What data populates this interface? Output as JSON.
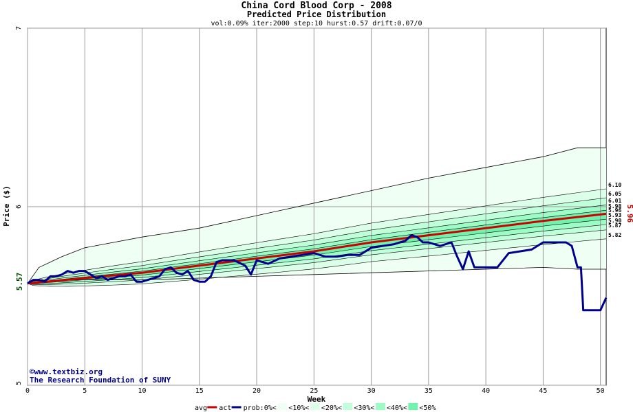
{
  "chart_data": {
    "type": "line",
    "title": "China Cord Blood Corp - 2008",
    "subtitle": "Predicted Price Distribution",
    "params": "vol:0.09% iter:2000 step:10 hurst:0.57 drift:0.07/0",
    "xlabel": "Week",
    "ylabel": "Price ($)",
    "xlim": [
      0,
      50.5
    ],
    "ylim": [
      5,
      7
    ],
    "x_ticks": [
      0,
      5,
      10,
      15,
      20,
      25,
      30,
      35,
      40,
      45,
      50
    ],
    "y_ticks": [
      5,
      6,
      7
    ],
    "grid": true,
    "start_price_label": "5.57",
    "end_avg_label": "5.96",
    "watermark_line1": "©www.textbiz.org",
    "watermark_line2": "The Research Foundation of SUNY",
    "percentile_labels": [
      "6.10",
      "6.05",
      "6.01",
      "5.98",
      "5.96",
      "5.93",
      "5.90",
      "5.87",
      "5.82"
    ],
    "percentile_band_end": {
      "upper": [
        6.1,
        6.05,
        6.01,
        5.98
      ],
      "lower": [
        5.93,
        5.9,
        5.87,
        5.82
      ]
    },
    "outer_envelope": {
      "x": [
        0,
        1,
        3,
        5,
        10,
        15,
        20,
        25,
        30,
        35,
        40,
        45,
        48,
        50.5
      ],
      "upper": [
        5.57,
        5.66,
        5.72,
        5.77,
        5.83,
        5.88,
        5.95,
        6.02,
        6.09,
        6.16,
        6.22,
        6.28,
        6.33,
        6.33
      ],
      "lower": [
        5.57,
        5.58,
        5.59,
        5.59,
        5.59,
        5.6,
        5.61,
        5.62,
        5.63,
        5.64,
        5.65,
        5.66,
        5.65,
        5.65
      ]
    },
    "series": [
      {
        "name": "avg",
        "color": "#cc0000",
        "x": [
          0,
          5,
          10,
          15,
          20,
          25,
          30,
          35,
          40,
          45,
          50.5
        ],
        "y": [
          5.57,
          5.6,
          5.63,
          5.67,
          5.71,
          5.75,
          5.8,
          5.84,
          5.88,
          5.92,
          5.96
        ]
      },
      {
        "name": "act",
        "color": "#00008b",
        "x": [
          0,
          0.5,
          1,
          1.5,
          2,
          2.5,
          3,
          3.5,
          4,
          4.5,
          5,
          5.5,
          6,
          6.5,
          7,
          7.5,
          8,
          8.5,
          9,
          9.5,
          10,
          10.5,
          11,
          11.5,
          12,
          12.5,
          13,
          13.5,
          14,
          14.5,
          15,
          15.5,
          16,
          16.5,
          17,
          18,
          19,
          19.5,
          20,
          21,
          22,
          23,
          24,
          25,
          26,
          27,
          28,
          29,
          30,
          31,
          32,
          33,
          33.5,
          34,
          34.5,
          35,
          36,
          37,
          37.5,
          38,
          38.5,
          39,
          40,
          41,
          42,
          43,
          44,
          45,
          46,
          47,
          47.5,
          48,
          48.3,
          48.5,
          49,
          49.5,
          50,
          50.5
        ],
        "y": [
          5.57,
          5.59,
          5.59,
          5.58,
          5.61,
          5.61,
          5.62,
          5.64,
          5.63,
          5.64,
          5.64,
          5.62,
          5.6,
          5.61,
          5.59,
          5.6,
          5.61,
          5.61,
          5.62,
          5.58,
          5.58,
          5.59,
          5.6,
          5.61,
          5.65,
          5.66,
          5.63,
          5.62,
          5.64,
          5.59,
          5.58,
          5.58,
          5.61,
          5.69,
          5.7,
          5.7,
          5.67,
          5.62,
          5.7,
          5.68,
          5.71,
          5.72,
          5.73,
          5.74,
          5.72,
          5.72,
          5.73,
          5.73,
          5.77,
          5.78,
          5.79,
          5.81,
          5.84,
          5.83,
          5.8,
          5.8,
          5.78,
          5.8,
          5.72,
          5.65,
          5.75,
          5.66,
          5.66,
          5.66,
          5.74,
          5.75,
          5.76,
          5.8,
          5.8,
          5.8,
          5.78,
          5.66,
          5.66,
          5.42,
          5.42,
          5.42,
          5.42,
          5.49
        ]
      }
    ],
    "legend": {
      "position": "bottom",
      "items": [
        "avg",
        "act",
        "prob:0%<",
        "<10%<",
        "<20%<",
        "<30%<",
        "<40%<",
        "<50%"
      ],
      "band_colors": [
        "#f0fff4",
        "#dcffea",
        "#bfffd9",
        "#9dfbc6",
        "#6ff2ac"
      ]
    },
    "colors": {
      "grid": "#999999",
      "envelope_line": "#000000",
      "avg": "#cc0000",
      "act": "#00008b",
      "start_label": "#004d00",
      "end_label": "#cc0000"
    }
  }
}
